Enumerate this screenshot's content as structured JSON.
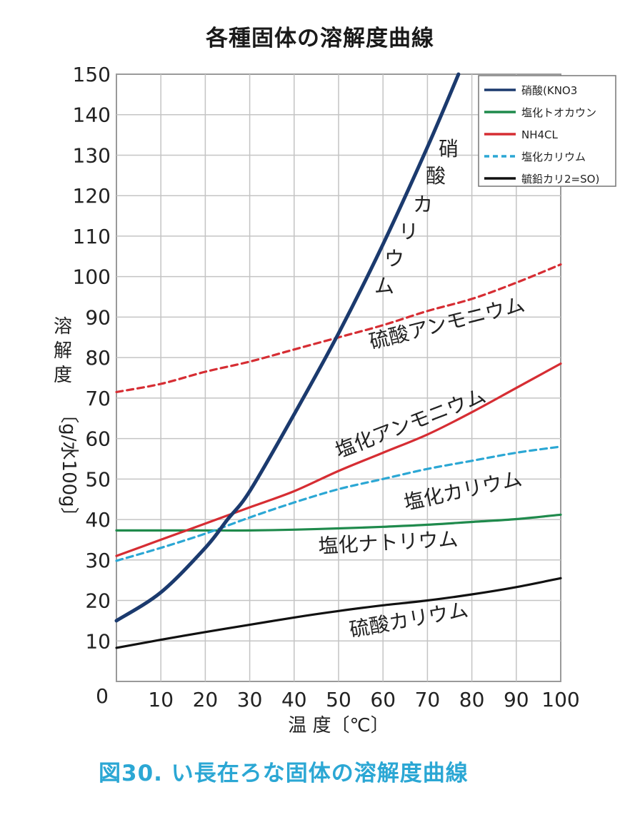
{
  "title": "各種固体の溶解度曲線",
  "caption": "図30. い長在ろな固体の溶解度曲線",
  "chart_data": {
    "type": "line",
    "title": "各種固体の溶解度曲線",
    "xlabel": "温 度〔℃〕",
    "ylabel": [
      "溶",
      "解",
      "度",
      "〔g/水100g〕"
    ],
    "xlim": [
      0,
      100
    ],
    "ylim": [
      0,
      150
    ],
    "x_ticks": [
      "0",
      "10",
      "20",
      "30",
      "40",
      "50",
      "60",
      "70",
      "80",
      "90",
      "100"
    ],
    "y_ticks": [
      "10",
      "20",
      "30",
      "40",
      "50",
      "60",
      "70",
      "80",
      "90",
      "100",
      "110",
      "120",
      "130",
      "140",
      "150"
    ],
    "grid": true,
    "legend_position": "top-right",
    "series": [
      {
        "name": "硝酸(KNO3",
        "color": "#1b3a6e",
        "style": "solid",
        "label_chars": [
          "硝",
          "酸",
          "カ",
          "リ",
          "ウ",
          "ム"
        ],
        "x": [
          0,
          10,
          20,
          25,
          30,
          40,
          50,
          60,
          70,
          77
        ],
        "y": [
          15,
          22,
          33,
          40,
          47,
          66,
          86,
          108,
          132,
          150
        ]
      },
      {
        "name": "塩化トオカウン",
        "color": "#1f8a4c",
        "style": "solid",
        "label": "塩化ナトリウム",
        "x": [
          0,
          10,
          20,
          30,
          40,
          50,
          60,
          70,
          80,
          90,
          100
        ],
        "y": [
          37.3,
          37.3,
          37.3,
          37.3,
          37.5,
          37.8,
          38.2,
          38.7,
          39.4,
          40.1,
          41.2
        ]
      },
      {
        "name": "NH4CL",
        "color": "#d62d33",
        "style": "solid",
        "label": "塩化アンモニウム",
        "x": [
          0,
          10,
          20,
          30,
          40,
          50,
          60,
          70,
          80,
          90,
          100
        ],
        "y": [
          31,
          35,
          39,
          43,
          47,
          52,
          56.5,
          61,
          66.5,
          72.5,
          78.5
        ]
      },
      {
        "name": "塩化カリウム",
        "color": "#2ba7d4",
        "style": "dashed",
        "label": "塩化カリウム",
        "x": [
          0,
          10,
          20,
          30,
          40,
          50,
          60,
          70,
          80,
          90,
          100
        ],
        "y": [
          29.8,
          33,
          36.5,
          40.5,
          44.2,
          47.5,
          50,
          52.5,
          54.5,
          56.5,
          58
        ]
      },
      {
        "name": "",
        "color": "#d62d33",
        "style": "dashed",
        "label": "硫酸アンモニウム",
        "x": [
          0,
          10,
          20,
          30,
          40,
          50,
          60,
          70,
          80,
          90,
          100
        ],
        "y": [
          71.5,
          73.5,
          76.5,
          79,
          82,
          85,
          88,
          91.5,
          94.5,
          98.5,
          103
        ]
      },
      {
        "name": "毓鉛カリ2=SO)",
        "color": "#111111",
        "style": "solid",
        "label": "硫酸カリウム",
        "x": [
          0,
          10,
          20,
          30,
          40,
          50,
          60,
          70,
          80,
          90,
          100
        ],
        "y": [
          8.3,
          10.3,
          12.2,
          14,
          15.8,
          17.4,
          18.8,
          20,
          21.5,
          23.3,
          25.5
        ]
      }
    ],
    "legend": [
      {
        "text": "硝酸(KNO3",
        "color": "#1b3a6e",
        "style": "solid"
      },
      {
        "text": "塩化トオカウン",
        "color": "#1f8a4c",
        "style": "solid"
      },
      {
        "text": "NH4CL",
        "color": "#d62d33",
        "style": "solid"
      },
      {
        "text": "塩化カリウム",
        "color": "#2ba7d4",
        "style": "dashed"
      },
      {
        "text": "毓鉛カリ2=SO)",
        "color": "#111111",
        "style": "solid"
      }
    ]
  }
}
